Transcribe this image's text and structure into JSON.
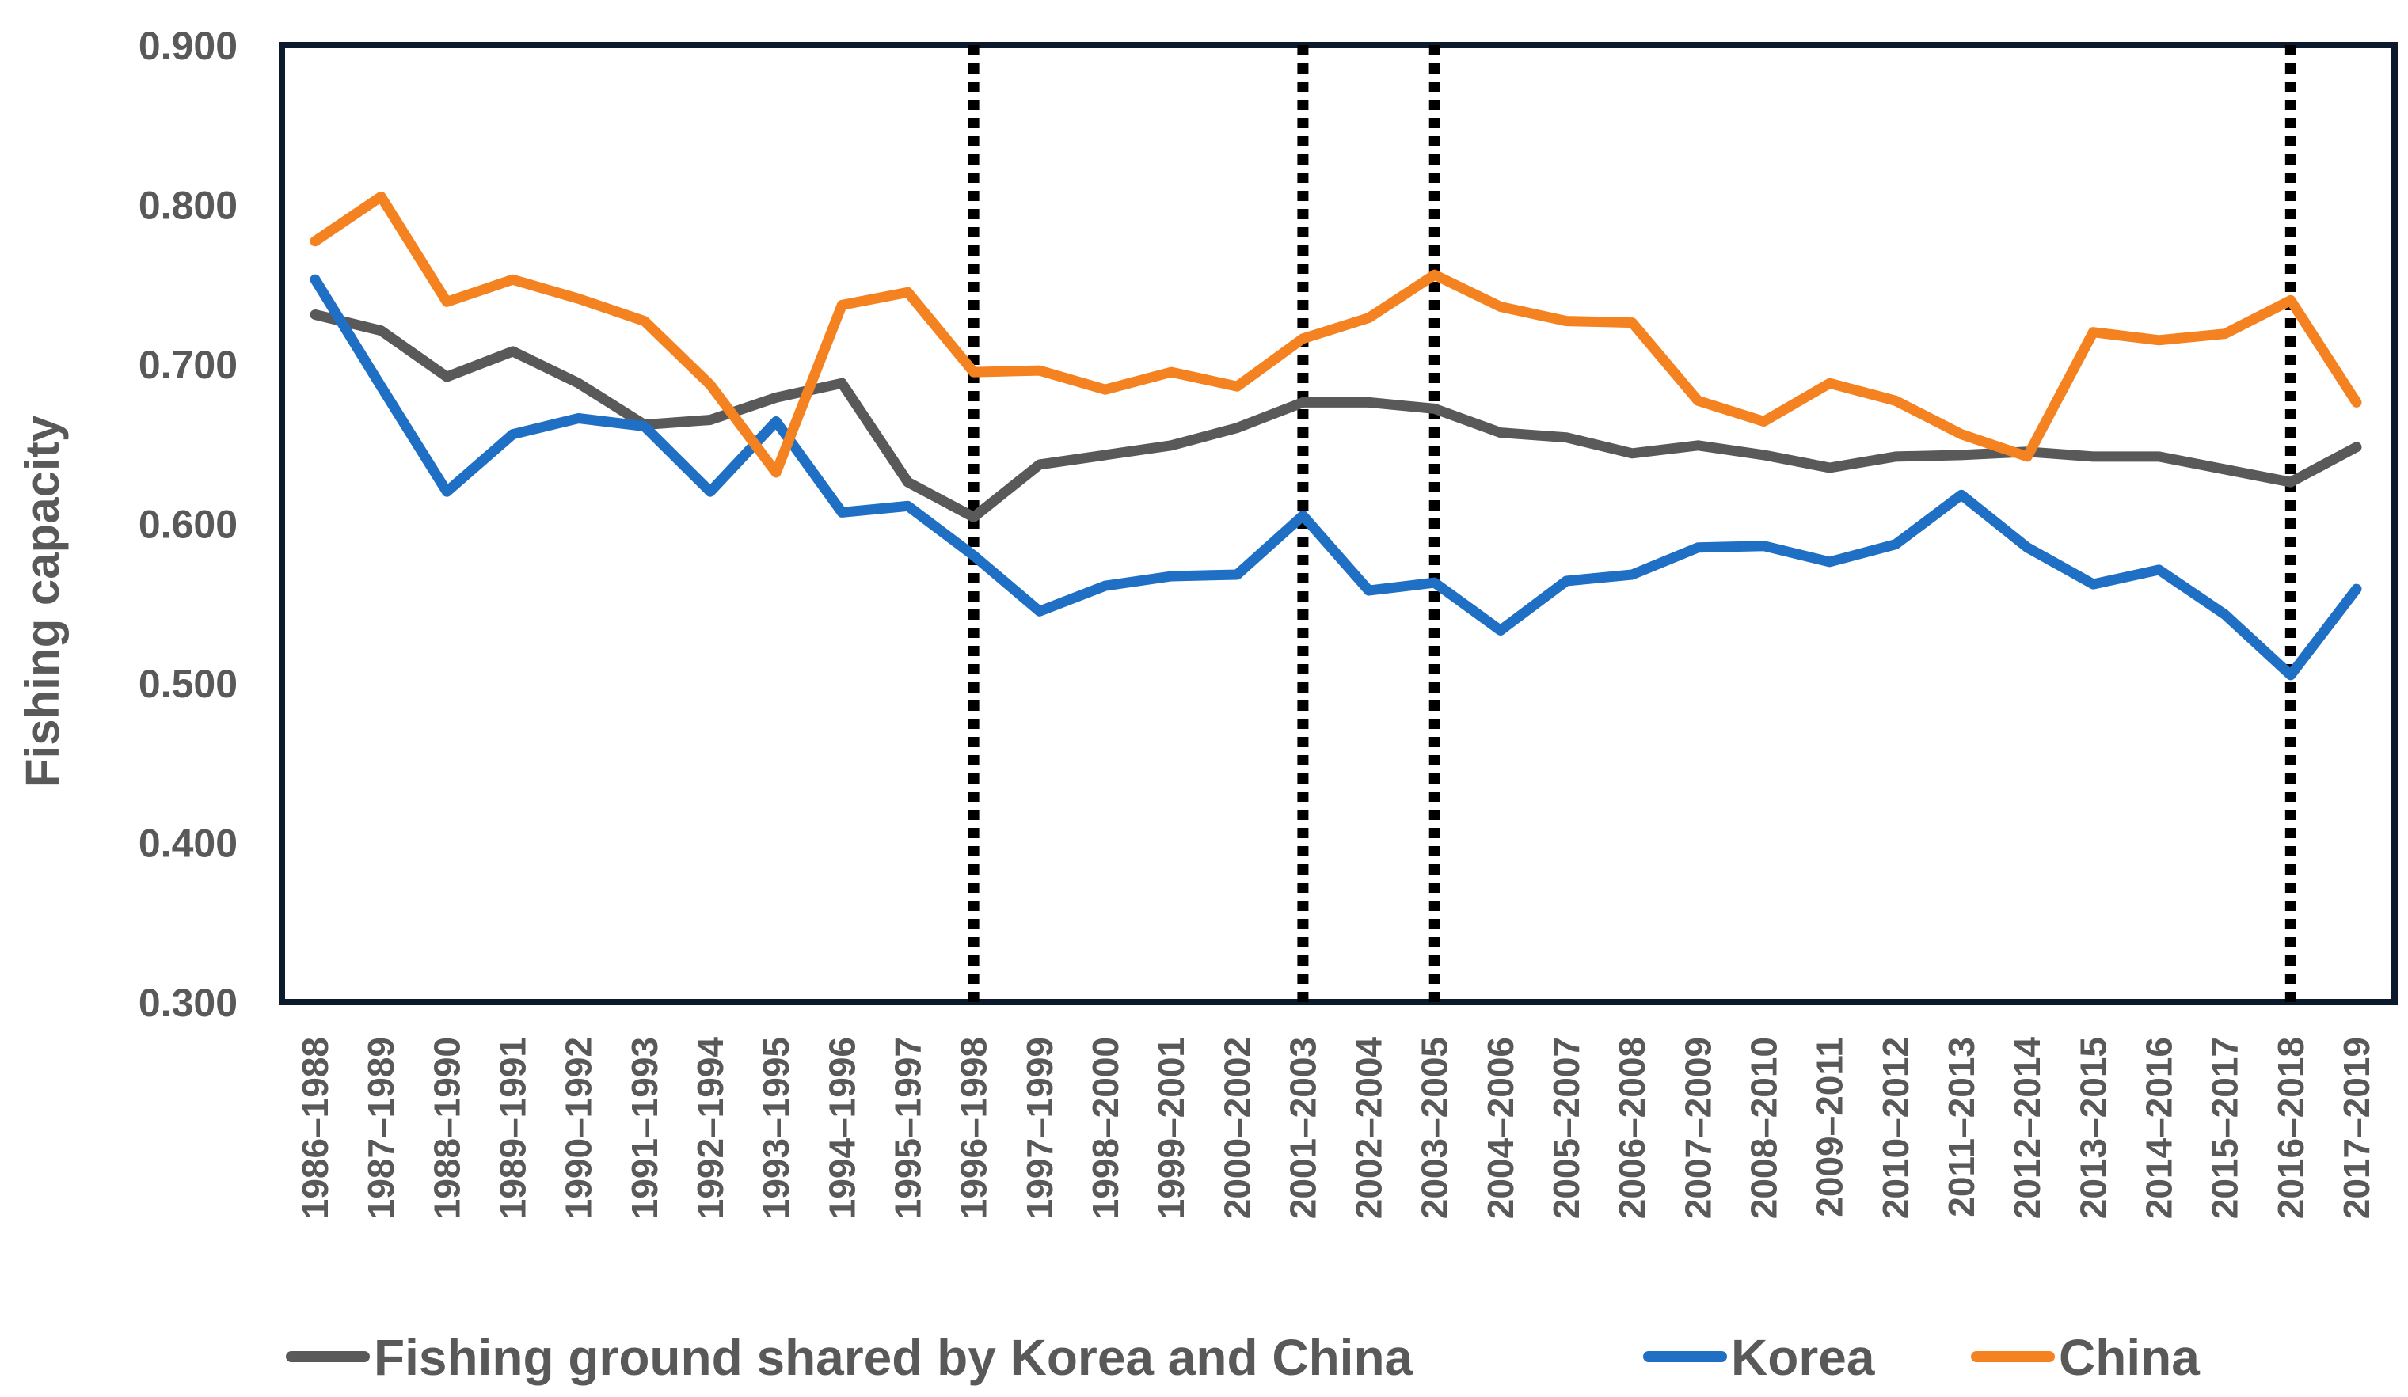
{
  "chart_data": {
    "type": "line",
    "title": "",
    "xlabel": "",
    "ylabel": "Fishing capacity",
    "ylim": [
      0.3,
      0.9
    ],
    "yticks": [
      "0.900",
      "0.800",
      "0.700",
      "0.600",
      "0.500",
      "0.400",
      "0.300"
    ],
    "ytick_values": [
      0.9,
      0.8,
      0.7,
      0.6,
      0.5,
      0.4,
      0.3
    ],
    "grid": false,
    "legend_position": "bottom",
    "categories": [
      "1986–1988",
      "1987–1989",
      "1988–1990",
      "1989–1991",
      "1990–1992",
      "1991–1993",
      "1992–1994",
      "1993–1995",
      "1994–1996",
      "1995–1997",
      "1996–1998",
      "1997–1999",
      "1998–2000",
      "1999–2001",
      "2000–2002",
      "2001–2003",
      "2002–2004",
      "2003–2005",
      "2004–2006",
      "2005–2007",
      "2006–2008",
      "2007–2009",
      "2008–2010",
      "2009–2011",
      "2010–2012",
      "2011–2013",
      "2012–2014",
      "2013–2015",
      "2014–2016",
      "2015–2017",
      "2016–2018",
      "2017–2019"
    ],
    "series": [
      {
        "name": "Fishing ground shared by Korea and China",
        "color": "#595959",
        "values": [
          0.731,
          0.721,
          0.692,
          0.708,
          0.688,
          0.662,
          0.665,
          0.679,
          0.688,
          0.626,
          0.604,
          0.637,
          0.643,
          0.649,
          0.66,
          0.676,
          0.676,
          0.672,
          0.657,
          0.654,
          0.644,
          0.649,
          0.643,
          0.635,
          0.642,
          0.643,
          0.645,
          0.642,
          0.642,
          0.634,
          0.626,
          0.648
        ]
      },
      {
        "name": "Korea",
        "color": "#1F6FC5",
        "values": [
          0.753,
          0.686,
          0.62,
          0.656,
          0.666,
          0.661,
          0.62,
          0.664,
          0.607,
          0.611,
          0.58,
          0.545,
          0.561,
          0.567,
          0.568,
          0.605,
          0.558,
          0.563,
          0.533,
          0.564,
          0.568,
          0.585,
          0.586,
          0.576,
          0.587,
          0.618,
          0.585,
          0.562,
          0.571,
          0.543,
          0.505,
          0.559
        ]
      },
      {
        "name": "China",
        "color": "#F58220",
        "values": [
          0.777,
          0.805,
          0.739,
          0.753,
          0.741,
          0.727,
          0.687,
          0.632,
          0.737,
          0.745,
          0.695,
          0.696,
          0.684,
          0.695,
          0.686,
          0.716,
          0.729,
          0.756,
          0.736,
          0.727,
          0.726,
          0.677,
          0.664,
          0.688,
          0.677,
          0.656,
          0.642,
          0.72,
          0.715,
          0.719,
          0.74,
          0.676
        ]
      }
    ],
    "vertical_markers": [
      "1996–1998",
      "2001–2003",
      "2003–2005",
      "2016–2018"
    ]
  }
}
